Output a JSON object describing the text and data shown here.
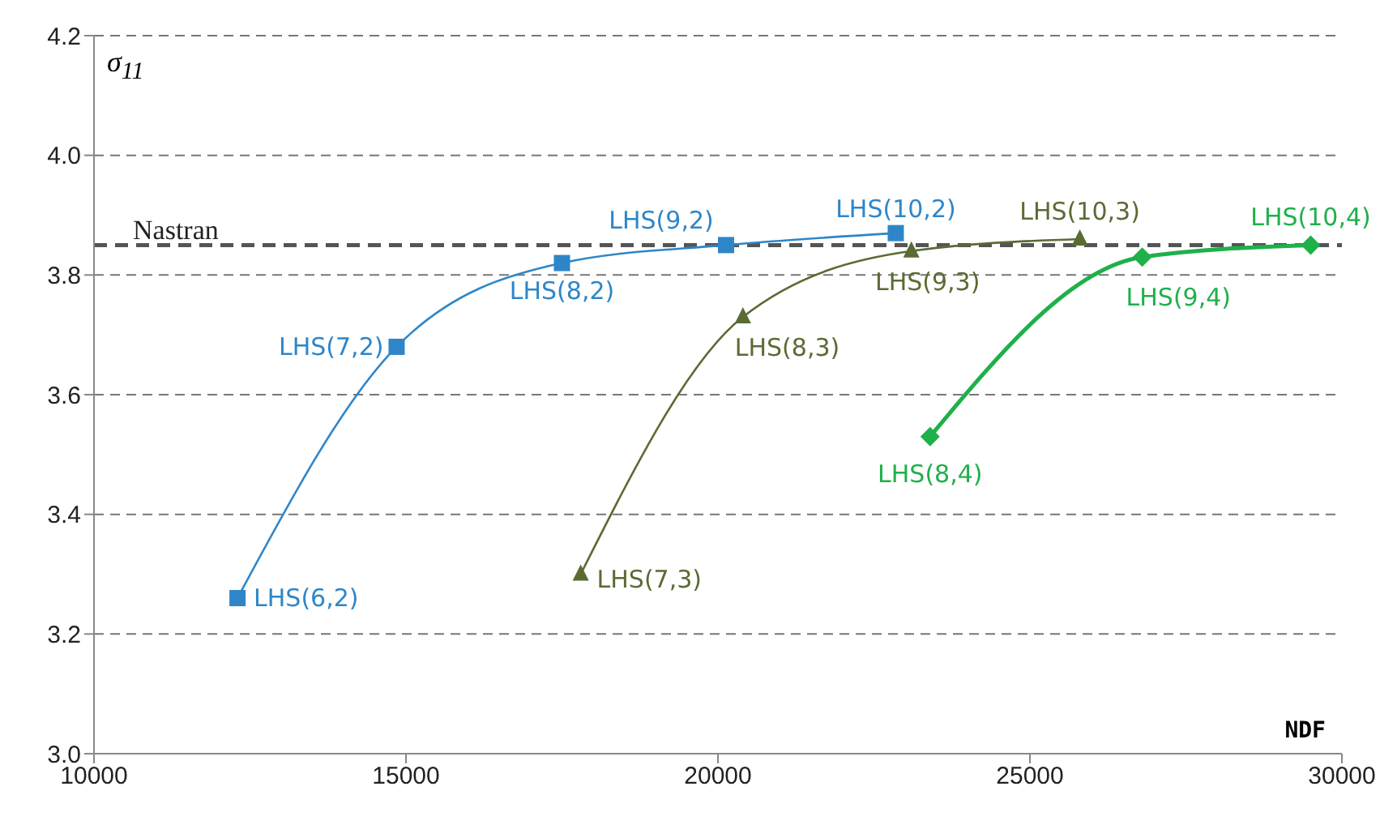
{
  "chart_data": {
    "type": "line",
    "xlabel": "NDF",
    "ylabel": "σ$_{11}$",
    "xlim": [
      10000,
      30000
    ],
    "xticks": [
      10000,
      15000,
      20000,
      25000,
      30000
    ],
    "ylim": [
      3.0,
      4.2
    ],
    "yticks": [
      {
        "value": 3.0,
        "label": "3.0"
      },
      3.2,
      3.4,
      3.6,
      3.8,
      {
        "value": 4.0,
        "label": "4.0"
      },
      4.2
    ],
    "grid": "y",
    "line_style": "solid",
    "series": [
      {
        "color": "#2e86c8",
        "marker": "square",
        "x": [
          12300,
          14850,
          17500,
          20130,
          22850
        ],
        "values": [
          3.26,
          3.68,
          3.82,
          3.85,
          3.87
        ]
      },
      {
        "color": "#5a6b34",
        "marker": "triangle",
        "x": [
          17800,
          20400,
          23100,
          25800
        ],
        "values": [
          3.3,
          3.73,
          3.84,
          3.86
        ]
      },
      {
        "color": "#1fb04a",
        "marker": "diamond",
        "x": [
          23400,
          26800,
          29500
        ],
        "values": [
          3.53,
          3.83,
          3.85
        ]
      }
    ],
    "ref_lines": [
      {
        "axis": "y",
        "value": 3.85,
        "label": "Nastran",
        "color": "#555555",
        "line_style": "dashed"
      }
    ],
    "annotations": [
      {
        "text": "LHS(6,2)",
        "x": 12300,
        "y": 3.26
      },
      {
        "text": "LHS(7,2)",
        "x": 14850,
        "y": 3.68
      },
      {
        "text": "LHS(8,2)",
        "x": 17500,
        "y": 3.82
      },
      {
        "text": "LHS(9,2)",
        "x": 20130,
        "y": 3.85
      },
      {
        "text": "LHS(10,2)",
        "x": 22850,
        "y": 3.87
      },
      {
        "text": "LHS(7,3)",
        "x": 17800,
        "y": 3.3
      },
      {
        "text": "LHS(8,3)",
        "x": 20400,
        "y": 3.73
      },
      {
        "text": "LHS(9,3)",
        "x": 23100,
        "y": 3.84
      },
      {
        "text": "LHS(10,3)",
        "x": 25800,
        "y": 3.86
      },
      {
        "text": "LHS(8,4)",
        "x": 23400,
        "y": 3.53
      },
      {
        "text": "LHS(9,4)",
        "x": 26800,
        "y": 3.83
      },
      {
        "text": "LHS(10,4)",
        "x": 29500,
        "y": 3.85
      }
    ]
  }
}
